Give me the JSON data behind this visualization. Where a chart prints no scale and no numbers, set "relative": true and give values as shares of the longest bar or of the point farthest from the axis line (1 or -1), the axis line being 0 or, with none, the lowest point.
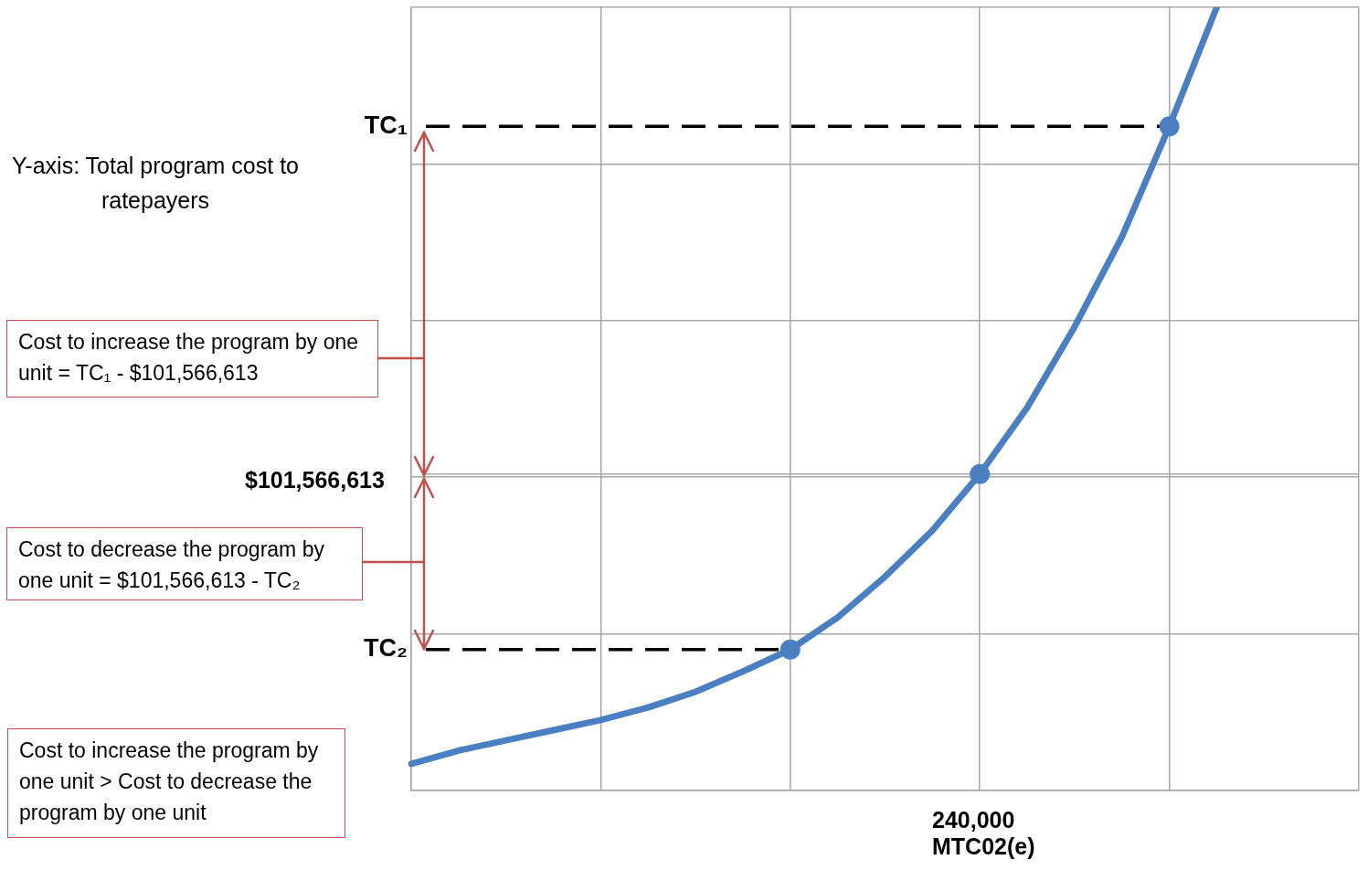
{
  "chart_data": {
    "type": "line",
    "relative": true,
    "grid": true,
    "marker": "none",
    "categories": [
      null,
      null,
      null,
      null,
      null,
      null,
      null,
      null,
      null,
      null,
      null,
      null,
      null,
      null,
      null,
      null,
      null,
      null,
      null,
      null,
      null
    ],
    "xlabel": "MTC02(e)",
    "series": [
      {
        "color": "#4a7fc1",
        "values": [
          0.034,
          0.051,
          0.064,
          0.077,
          0.09,
          0.106,
          0.126,
          0.152,
          0.18,
          0.221,
          0.273,
          0.332,
          0.404,
          0.489,
          0.592,
          0.707,
          0.848,
          1,
          null,
          null,
          null
        ]
      }
    ],
    "ref_lines": [
      {
        "axis": "y",
        "value": 0.848,
        "label": "TC₁",
        "color": "#000000",
        "line_style": "dashed"
      },
      {
        "axis": "y",
        "value": 0.404,
        "color": "#a6a6a6",
        "line_style": "solid"
      },
      {
        "axis": "y",
        "value": 0.18,
        "label": "TC₂",
        "color": "#000000",
        "line_style": "dashed"
      }
    ],
    "annotations": [
      "$101,566,613",
      "240,000",
      "Y-axis: Total program cost to ratepayers",
      "Cost to increase the program by one unit = TC₁ - $101,566,613",
      "Cost to decrease the program by one unit = $101,566,613 - TC₂",
      "Cost to increase the program by one unit > Cost to decrease the program by one unit"
    ]
  }
}
